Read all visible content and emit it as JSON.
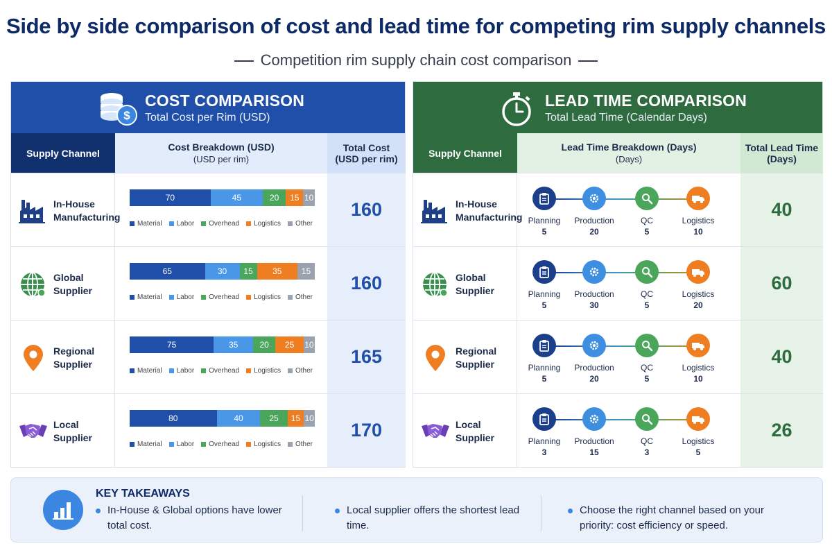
{
  "title": "Side by side comparison of cost and lead time for competing rim supply channels",
  "subtitle": "Competition rim supply chain cost comparison",
  "cost_panel": {
    "title": "COST COMPARISON",
    "subtitle": "Total Cost per Rim (USD)",
    "col_channel": "Supply Channel",
    "col_breakdown": "Cost Breakdown (USD)",
    "col_breakdown_sub": "(USD per rim)",
    "col_total_1": "Total Cost",
    "col_total_2": "(USD per rim)",
    "legend": [
      "Material",
      "Labor",
      "Overhead",
      "Logistics",
      "Other"
    ]
  },
  "lead_panel": {
    "title": "LEAD TIME COMPARISON",
    "subtitle": "Total Lead Time (Calendar Days)",
    "col_channel": "Supply Channel",
    "col_breakdown": "Lead Time Breakdown (Days)",
    "col_breakdown_sub": "(Days)",
    "col_total_1": "Total Lead Time",
    "col_total_2": "(Days)",
    "stages": [
      "Planning",
      "Production",
      "QC",
      "Logistics"
    ]
  },
  "channels": [
    {
      "name1": "In-House",
      "name2": "Manufacturing",
      "icon": "factory-icon"
    },
    {
      "name1": "Global",
      "name2": "Supplier",
      "icon": "globe-icon"
    },
    {
      "name1": "Regional",
      "name2": "Supplier",
      "icon": "map-pin-icon"
    },
    {
      "name1": "Local",
      "name2": "Supplier",
      "icon": "handshake-icon"
    }
  ],
  "chart_data": [
    {
      "type": "bar",
      "title": "COST COMPARISON",
      "subtitle": "Total Cost per Rim (USD)",
      "stacked": true,
      "orientation": "horizontal",
      "categories": [
        "In-House Manufacturing",
        "Global Supplier",
        "Regional Supplier",
        "Local Supplier"
      ],
      "series": [
        {
          "name": "Material",
          "color": "#1f4fa8",
          "values": [
            70,
            65,
            75,
            80
          ]
        },
        {
          "name": "Labor",
          "color": "#4a97e8",
          "values": [
            45,
            30,
            35,
            40
          ]
        },
        {
          "name": "Overhead",
          "color": "#4aa65a",
          "values": [
            20,
            15,
            20,
            25
          ]
        },
        {
          "name": "Logistics",
          "color": "#ef7d22",
          "values": [
            15,
            35,
            25,
            15
          ]
        },
        {
          "name": "Other",
          "color": "#9aa3ad",
          "values": [
            10,
            15,
            10,
            10
          ]
        }
      ],
      "totals": [
        160,
        160,
        165,
        170
      ]
    },
    {
      "type": "table",
      "title": "LEAD TIME COMPARISON",
      "subtitle": "Total Lead Time (Calendar Days)",
      "categories": [
        "In-House Manufacturing",
        "Global Supplier",
        "Regional Supplier",
        "Local Supplier"
      ],
      "series": [
        {
          "name": "Planning",
          "color": "#1b3f8a",
          "values": [
            5,
            5,
            5,
            3
          ]
        },
        {
          "name": "Production",
          "color": "#3e8fe0",
          "values": [
            20,
            30,
            20,
            15
          ]
        },
        {
          "name": "QC",
          "color": "#4aa65a",
          "values": [
            5,
            5,
            5,
            3
          ]
        },
        {
          "name": "Logistics",
          "color": "#ef7d22",
          "values": [
            10,
            20,
            10,
            5
          ]
        }
      ],
      "totals": [
        40,
        60,
        40,
        26
      ]
    }
  ],
  "takeaways": {
    "title": "KEY TAKEAWAYS",
    "items": [
      "In-House & Global options have lower total cost.",
      "Local supplier offers the shortest lead time.",
      "Choose the right channel based on your priority: cost efficiency or speed."
    ]
  }
}
